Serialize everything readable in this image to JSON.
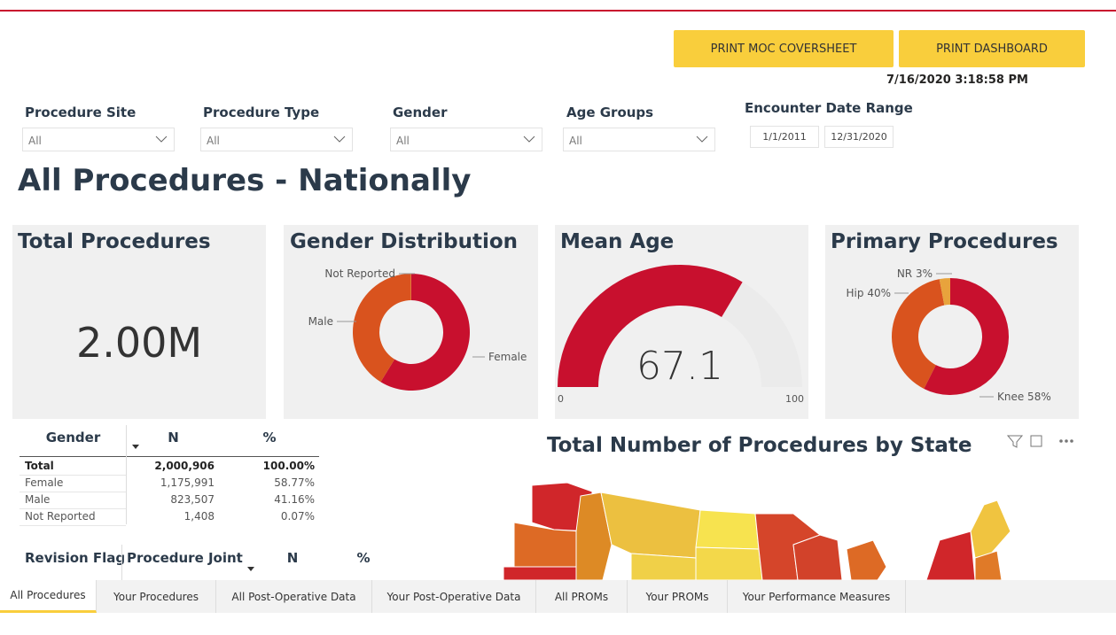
{
  "buttons": [
    "PRINT MOC COVERSHEET",
    "PRINT DASHBOARD"
  ],
  "timestamp": "7/16/2020 3:18:58 PM",
  "filters": [
    {
      "label": "Procedure Site",
      "value": "All"
    },
    {
      "label": "Procedure Type",
      "value": "All"
    },
    {
      "label": "Gender",
      "value": "All"
    },
    {
      "label": "Age Groups",
      "value": "All"
    }
  ],
  "date_range": {
    "label": "Encounter Date Range",
    "start": "1/1/2011",
    "end": "12/31/2020"
  },
  "page_title": "All Procedures - Nationally",
  "cards": {
    "total": {
      "title": "Total Procedures",
      "value": "2.00M"
    },
    "gender": {
      "title": "Gender Distribution",
      "labels": [
        "Female",
        "Male",
        "Not Reported"
      ],
      "values": [
        58.77,
        41.16,
        0.07
      ],
      "colors": [
        "#c8102e",
        "#d9531e",
        "#e8a33c"
      ]
    },
    "mean_age": {
      "title": "Mean Age",
      "value": 67.1,
      "min": 0,
      "max": 100,
      "color": "#c8102e"
    },
    "primary": {
      "title": "Primary Procedures",
      "labels": [
        "Knee 58%",
        "Hip 40%",
        "NR 3%"
      ],
      "values": [
        58,
        40,
        3
      ],
      "colors": [
        "#c8102e",
        "#d9531e",
        "#e8a33c"
      ]
    }
  },
  "gender_table": {
    "columns": [
      "Gender",
      "N",
      "%"
    ],
    "rows": [
      [
        "Total",
        "2,000,906",
        "100.00%"
      ],
      [
        "Female",
        "1,175,991",
        "58.77%"
      ],
      [
        "Male",
        "823,507",
        "41.16%"
      ],
      [
        "Not Reported",
        "1,408",
        "0.07%"
      ]
    ]
  },
  "revision_table": {
    "columns": [
      "Revision Flag",
      "Procedure Joint",
      "N",
      "%"
    ]
  },
  "map": {
    "title": "Total Number of Procedures by State"
  },
  "tabs": [
    "All Procedures",
    "Your Procedures",
    "All Post-Operative Data",
    "Your Post-Operative Data",
    "All PROMs",
    "Your PROMs",
    "Your Performance Measures"
  ]
}
